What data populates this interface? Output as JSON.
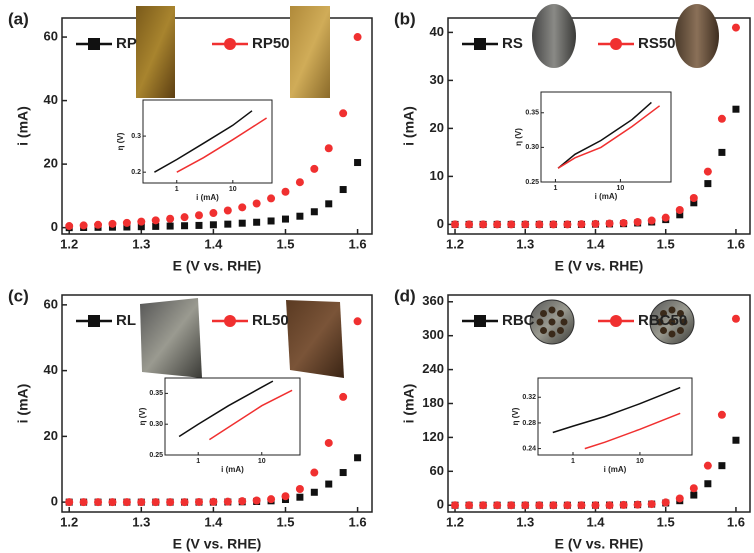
{
  "chart_data": [
    {
      "type": "scatter",
      "panel": "(a)",
      "xlabel": "E (V vs. RHE)",
      "ylabel": "i (mA)",
      "xlim": [
        1.19,
        1.62
      ],
      "xticks": [
        1.2,
        1.3,
        1.4,
        1.5,
        1.6
      ],
      "ylim": [
        -2,
        66
      ],
      "yticks": [
        0,
        20,
        40,
        60
      ],
      "x": [
        1.2,
        1.22,
        1.24,
        1.26,
        1.28,
        1.3,
        1.32,
        1.34,
        1.36,
        1.38,
        1.4,
        1.42,
        1.44,
        1.46,
        1.48,
        1.5,
        1.52,
        1.54,
        1.56,
        1.58,
        1.6
      ],
      "series": [
        {
          "name": "RP",
          "color": "#111111",
          "marker": "square",
          "values": [
            0,
            0.05,
            0.1,
            0.15,
            0.2,
            0.3,
            0.4,
            0.5,
            0.6,
            0.7,
            0.9,
            1.1,
            1.4,
            1.7,
            2.1,
            2.7,
            3.6,
            5,
            7.5,
            12,
            20.5
          ]
        },
        {
          "name": "RP50",
          "color": "#f03030",
          "marker": "circle",
          "values": [
            0.5,
            0.7,
            0.9,
            1.2,
            1.5,
            1.9,
            2.3,
            2.8,
            3.3,
            3.9,
            4.6,
            5.4,
            6.4,
            7.6,
            9.2,
            11.3,
            14.3,
            18.5,
            25,
            36,
            60
          ]
        }
      ],
      "inset": {
        "type": "line",
        "xlabel": "i (mA)",
        "ylabel": "η (V)",
        "xscale": "log",
        "xlim": [
          0.25,
          50
        ],
        "xticks": [
          1,
          10
        ],
        "ylim": [
          0.17,
          0.4
        ],
        "yticks": [
          0.2,
          0.3
        ],
        "series": [
          {
            "color": "#111111",
            "x": [
              0.4,
              1,
              3,
              10,
              22
            ],
            "values": [
              0.2,
              0.235,
              0.28,
              0.33,
              0.37
            ]
          },
          {
            "color": "#f03030",
            "x": [
              1,
              3,
              10,
              40
            ],
            "values": [
              0.2,
              0.24,
              0.29,
              0.35
            ]
          }
        ]
      }
    },
    {
      "type": "scatter",
      "panel": "(b)",
      "xlabel": "E (V vs. RHE)",
      "ylabel": "i (mA)",
      "xlim": [
        1.19,
        1.62
      ],
      "xticks": [
        1.2,
        1.3,
        1.4,
        1.5,
        1.6
      ],
      "ylim": [
        -2,
        43
      ],
      "yticks": [
        0,
        10,
        20,
        30,
        40
      ],
      "x": [
        1.2,
        1.22,
        1.24,
        1.26,
        1.28,
        1.3,
        1.32,
        1.34,
        1.36,
        1.38,
        1.4,
        1.42,
        1.44,
        1.46,
        1.48,
        1.5,
        1.52,
        1.54,
        1.56,
        1.58,
        1.6
      ],
      "series": [
        {
          "name": "RS",
          "color": "#111111",
          "marker": "square",
          "values": [
            0,
            0,
            0,
            0,
            0,
            0,
            0,
            0,
            0,
            0,
            0.05,
            0.1,
            0.15,
            0.3,
            0.5,
            1,
            2,
            4.5,
            8.5,
            15,
            24
          ]
        },
        {
          "name": "RS50",
          "color": "#f03030",
          "marker": "circle",
          "values": [
            0,
            0,
            0,
            0,
            0,
            0,
            0,
            0,
            0,
            0.05,
            0.1,
            0.2,
            0.3,
            0.5,
            0.8,
            1.4,
            3,
            5.5,
            11,
            22,
            41
          ]
        }
      ],
      "inset": {
        "type": "line",
        "xlabel": "i (mA)",
        "ylabel": "η (V)",
        "xscale": "log",
        "xlim": [
          0.6,
          60
        ],
        "xticks": [
          1,
          10
        ],
        "ylim": [
          0.25,
          0.38
        ],
        "yticks": [
          0.25,
          {
            "value": 0.3,
            "label": "0.30"
          },
          0.35
        ],
        "series": [
          {
            "color": "#111111",
            "x": [
              1.1,
              2,
              5,
              15,
              30
            ],
            "values": [
              0.27,
              0.29,
              0.31,
              0.34,
              0.365
            ]
          },
          {
            "color": "#f03030",
            "x": [
              1.1,
              2,
              5,
              15,
              40
            ],
            "values": [
              0.27,
              0.285,
              0.3,
              0.33,
              0.36
            ]
          }
        ]
      }
    },
    {
      "type": "scatter",
      "panel": "(c)",
      "xlabel": "E (V vs. RHE)",
      "ylabel": "i (mA)",
      "xlim": [
        1.19,
        1.62
      ],
      "xticks": [
        1.2,
        1.3,
        1.4,
        1.5,
        1.6
      ],
      "ylim": [
        -3,
        63
      ],
      "yticks": [
        0,
        20,
        40,
        60
      ],
      "x": [
        1.2,
        1.22,
        1.24,
        1.26,
        1.28,
        1.3,
        1.32,
        1.34,
        1.36,
        1.38,
        1.4,
        1.42,
        1.44,
        1.46,
        1.48,
        1.5,
        1.52,
        1.54,
        1.56,
        1.58,
        1.6
      ],
      "series": [
        {
          "name": "RL",
          "color": "#111111",
          "marker": "square",
          "values": [
            0,
            0,
            0,
            0,
            0,
            0,
            0,
            0,
            0,
            0,
            0,
            0.05,
            0.1,
            0.2,
            0.4,
            0.8,
            1.5,
            3,
            5.5,
            9,
            13.5
          ]
        },
        {
          "name": "RL50",
          "color": "#f03030",
          "marker": "circle",
          "values": [
            0,
            0,
            0,
            0,
            0,
            0,
            0,
            0,
            0,
            0.05,
            0.1,
            0.15,
            0.3,
            0.5,
            0.9,
            1.8,
            4,
            9,
            18,
            32,
            55
          ]
        }
      ],
      "inset": {
        "type": "line",
        "xlabel": "i (mA)",
        "ylabel": "η (V)",
        "xscale": "log",
        "xlim": [
          0.3,
          40
        ],
        "xticks": [
          1,
          10
        ],
        "ylim": [
          0.25,
          0.375
        ],
        "yticks": [
          0.25,
          {
            "value": 0.3,
            "label": "0.30"
          },
          0.35
        ],
        "series": [
          {
            "color": "#111111",
            "x": [
              0.5,
              1,
              3,
              10,
              15
            ],
            "values": [
              0.28,
              0.3,
              0.33,
              0.36,
              0.37
            ]
          },
          {
            "color": "#f03030",
            "x": [
              1.5,
              3,
              10,
              30
            ],
            "values": [
              0.275,
              0.295,
              0.33,
              0.355
            ]
          }
        ]
      }
    },
    {
      "type": "scatter",
      "panel": "(d)",
      "xlabel": "E (V vs. RHE)",
      "ylabel": "i (mA)",
      "xlim": [
        1.19,
        1.62
      ],
      "xticks": [
        1.2,
        1.3,
        1.4,
        1.5,
        1.6
      ],
      "ylim": [
        -12,
        372
      ],
      "yticks": [
        0,
        60,
        120,
        180,
        240,
        300,
        360
      ],
      "x": [
        1.2,
        1.22,
        1.24,
        1.26,
        1.28,
        1.3,
        1.32,
        1.34,
        1.36,
        1.38,
        1.4,
        1.42,
        1.44,
        1.46,
        1.48,
        1.5,
        1.52,
        1.54,
        1.56,
        1.58,
        1.6
      ],
      "series": [
        {
          "name": "RBC",
          "color": "#111111",
          "marker": "square",
          "values": [
            0,
            0,
            0,
            0,
            0,
            0,
            0,
            0,
            0,
            0,
            0,
            0.3,
            0.5,
            1,
            2,
            4,
            8,
            18,
            38,
            70,
            115
          ]
        },
        {
          "name": "RBC50",
          "color": "#f03030",
          "marker": "circle",
          "values": [
            0,
            0,
            0,
            0,
            0,
            0,
            0,
            0,
            0,
            0,
            0,
            0,
            0.5,
            1,
            2,
            5,
            12,
            30,
            70,
            160,
            330
          ]
        }
      ],
      "inset": {
        "type": "line",
        "xlabel": "i (mA)",
        "ylabel": "η (V)",
        "xscale": "log",
        "xlim": [
          0.3,
          60
        ],
        "xticks": [
          1,
          10
        ],
        "ylim": [
          0.23,
          0.35
        ],
        "yticks": [
          0.24,
          0.28,
          0.32
        ],
        "series": [
          {
            "color": "#111111",
            "x": [
              0.5,
              1,
              3,
              10,
              40
            ],
            "values": [
              0.265,
              0.275,
              0.29,
              0.31,
              0.335
            ]
          },
          {
            "color": "#f03030",
            "x": [
              1.5,
              3,
              10,
              40
            ],
            "values": [
              0.24,
              0.25,
              0.27,
              0.295
            ]
          }
        ]
      }
    }
  ]
}
